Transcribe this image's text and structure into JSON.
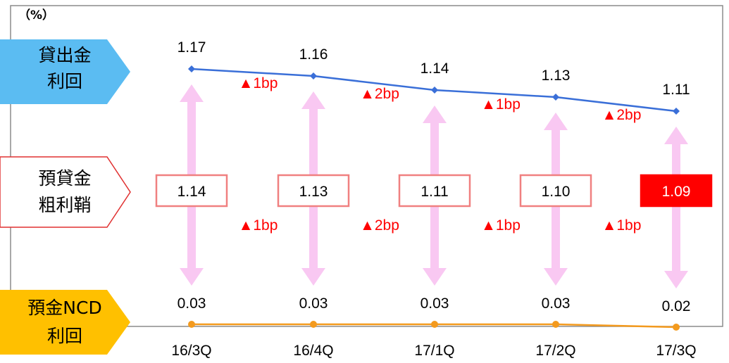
{
  "unit_label": "（%）",
  "row_labels": {
    "loan_yield": [
      "貸出金",
      "利回"
    ],
    "spread": [
      "預貸金",
      "粗利鞘"
    ],
    "deposit_yield": [
      "預金NCD",
      "利回"
    ]
  },
  "colors": {
    "loan_line": "#3a6fd8",
    "deposit_line": "#f39a1e",
    "loan_label_bg": "#5bbcf2",
    "deposit_label_bg": "#ffc000",
    "spread_arrow": "#f9c8f2",
    "spread_box_border": "#f08080",
    "highlight_fill": "#ff0000",
    "delta_text": "#ff0000"
  },
  "chart_data": {
    "type": "line",
    "categories": [
      "16/3Q",
      "16/4Q",
      "17/1Q",
      "17/2Q",
      "17/3Q"
    ],
    "series": [
      {
        "name": "貸出金利回",
        "values": [
          1.17,
          1.16,
          1.14,
          1.13,
          1.11
        ]
      },
      {
        "name": "預金NCD利回",
        "values": [
          0.03,
          0.03,
          0.03,
          0.03,
          0.02
        ]
      },
      {
        "name": "預貸金粗利鞘",
        "values": [
          1.14,
          1.13,
          1.11,
          1.1,
          1.09
        ]
      }
    ],
    "loan_changes": [
      "▲1bp",
      "▲2bp",
      "▲1bp",
      "▲2bp"
    ],
    "spread_changes": [
      "▲1bp",
      "▲2bp",
      "▲1bp",
      "▲1bp"
    ],
    "highlight_index": 4,
    "ylabel": "（%）"
  }
}
